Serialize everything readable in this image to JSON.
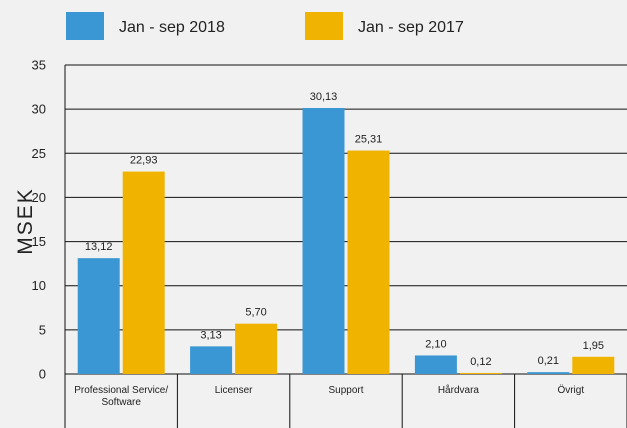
{
  "chart_data": {
    "type": "bar",
    "categories": [
      "Professional Service/\nSoftware",
      "Licenser",
      "Support",
      "Hårdvara",
      "Övrigt"
    ],
    "series": [
      {
        "name": "Jan - sep 2018",
        "color": "#3a97d4",
        "values": [
          13.12,
          3.13,
          30.13,
          2.1,
          0.21
        ],
        "labels": [
          "13,12",
          "3,13",
          "30,13",
          "2,10",
          "0,21"
        ]
      },
      {
        "name": "Jan - sep 2017",
        "color": "#f0b400",
        "values": [
          22.93,
          5.7,
          25.31,
          0.12,
          1.95
        ],
        "labels": [
          "22,93",
          "5,70",
          "25,31",
          "0,12",
          "1,95"
        ]
      }
    ],
    "ylabel": "MSEK",
    "xlabel": "",
    "ylim": [
      0,
      35
    ],
    "yticks": [
      0,
      5,
      10,
      15,
      20,
      25,
      30,
      35
    ],
    "grid": true,
    "legend": "top-left"
  }
}
